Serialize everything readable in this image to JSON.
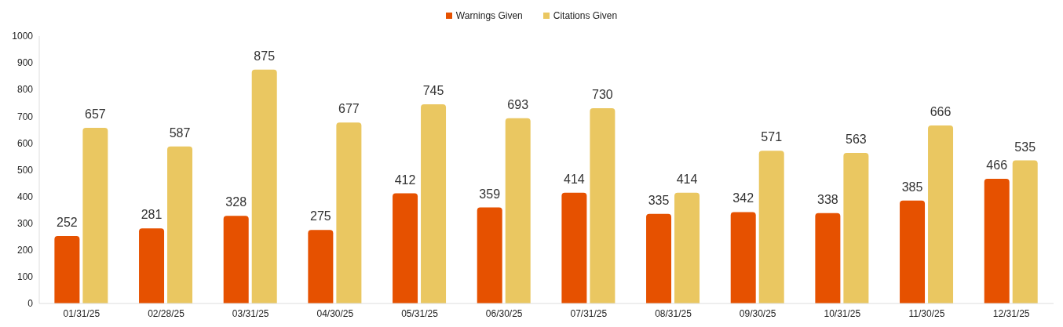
{
  "chart_data": {
    "type": "bar",
    "categories": [
      "01/31/25",
      "02/28/25",
      "03/31/25",
      "04/30/25",
      "05/31/25",
      "06/30/25",
      "07/31/25",
      "08/31/25",
      "09/30/25",
      "10/31/25",
      "11/30/25",
      "12/31/25"
    ],
    "series": [
      {
        "name": "Warnings Given",
        "color": "#e65100",
        "values": [
          252,
          281,
          328,
          275,
          412,
          359,
          414,
          335,
          342,
          338,
          385,
          466
        ]
      },
      {
        "name": "Citations Given",
        "color": "#eac761",
        "values": [
          657,
          587,
          875,
          677,
          745,
          693,
          730,
          414,
          571,
          563,
          666,
          535
        ]
      }
    ],
    "ylim": [
      0,
      1000
    ],
    "yticks": [
      0,
      100,
      200,
      300,
      400,
      500,
      600,
      700,
      800,
      900,
      1000
    ],
    "grid": false,
    "legend": "top",
    "data_labels": true
  }
}
